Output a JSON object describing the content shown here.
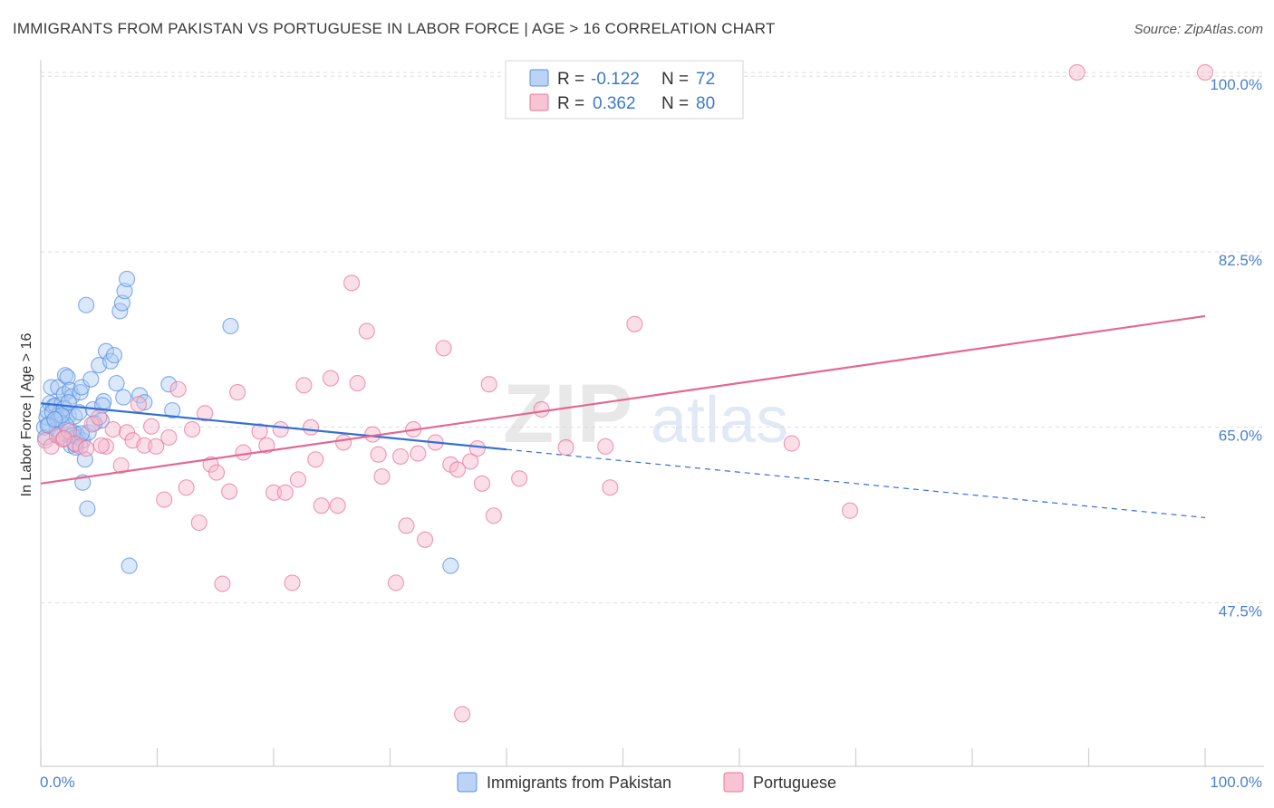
{
  "header": {
    "title": "IMMIGRANTS FROM PAKISTAN VS PORTUGUESE IN LABOR FORCE | AGE > 16 CORRELATION CHART",
    "source": "Source: ZipAtlas.com"
  },
  "watermark": {
    "zip": "ZIP",
    "atlas": "atlas"
  },
  "legend": {
    "rows": [
      {
        "r_label": "R =",
        "r_value": "-0.122",
        "n_label": "N =",
        "n_value": "72",
        "color": "#aecbf5"
      },
      {
        "r_label": "R =",
        "r_value": "0.362",
        "n_label": "N =",
        "n_value": "80",
        "color": "#f7b8cb"
      }
    ]
  },
  "bottom_legend": {
    "items": [
      {
        "label": "Immigrants from Pakistan",
        "color": "#aecbf5"
      },
      {
        "label": "Portuguese",
        "color": "#f7b8cb"
      }
    ]
  },
  "chart_data": {
    "type": "scatter",
    "title": "IMMIGRANTS FROM PAKISTAN VS PORTUGUESE IN LABOR FORCE | AGE > 16 CORRELATION CHART",
    "xlabel": "",
    "ylabel": "In Labor Force | Age > 16",
    "xlim": [
      0,
      100
    ],
    "ylim": [
      32,
      103
    ],
    "y_ticks": [
      47.5,
      65.0,
      82.5,
      100.0
    ],
    "y_tick_labels": [
      "47.5%",
      "65.0%",
      "82.5%",
      "100.0%"
    ],
    "x_tick_labels": [
      "0.0%",
      "100.0%"
    ],
    "grid": true,
    "series": [
      {
        "name": "Immigrants from Pakistan",
        "color": "#5a8fe0",
        "fill": "#aecbf5",
        "trend": {
          "x0": 0,
          "y0": 68.2,
          "x1": 40,
          "y1": 63.6,
          "dash_to_x": 100,
          "dash_to_y": 56.8
        },
        "points": [
          [
            0.3,
            65.8
          ],
          [
            0.5,
            66.8
          ],
          [
            0.6,
            67.4
          ],
          [
            0.8,
            68.2
          ],
          [
            0.9,
            69.8
          ],
          [
            1.1,
            67.9
          ],
          [
            1.2,
            66.4
          ],
          [
            1.3,
            68.0
          ],
          [
            1.4,
            65.6
          ],
          [
            1.5,
            69.8
          ],
          [
            1.6,
            67.2
          ],
          [
            1.7,
            64.9
          ],
          [
            1.8,
            68.1
          ],
          [
            1.9,
            66.8
          ],
          [
            2.0,
            69.1
          ],
          [
            2.1,
            71.0
          ],
          [
            2.2,
            65.1
          ],
          [
            2.3,
            70.8
          ],
          [
            2.4,
            67.0
          ],
          [
            2.5,
            69.5
          ],
          [
            2.6,
            64.0
          ],
          [
            2.7,
            68.9
          ],
          [
            2.8,
            65.3
          ],
          [
            2.9,
            66.9
          ],
          [
            3.0,
            63.8
          ],
          [
            3.1,
            65.1
          ],
          [
            3.2,
            64.8
          ],
          [
            3.3,
            67.3
          ],
          [
            3.4,
            69.3
          ],
          [
            3.5,
            69.8
          ],
          [
            3.6,
            64.5
          ],
          [
            3.8,
            62.6
          ],
          [
            3.9,
            78.0
          ],
          [
            4.1,
            65.3
          ],
          [
            4.3,
            70.6
          ],
          [
            4.5,
            67.6
          ],
          [
            5.0,
            72.0
          ],
          [
            5.2,
            66.5
          ],
          [
            5.4,
            68.4
          ],
          [
            5.6,
            73.4
          ],
          [
            6.0,
            72.4
          ],
          [
            6.3,
            73.0
          ],
          [
            6.5,
            70.2
          ],
          [
            6.8,
            77.4
          ],
          [
            7.0,
            78.2
          ],
          [
            7.2,
            79.4
          ],
          [
            7.4,
            80.6
          ],
          [
            7.1,
            68.8
          ],
          [
            8.5,
            69.0
          ],
          [
            8.9,
            68.3
          ],
          [
            11.0,
            70.1
          ],
          [
            11.3,
            67.5
          ],
          [
            0.4,
            64.8
          ],
          [
            0.7,
            66.1
          ],
          [
            1.0,
            67.3
          ],
          [
            1.5,
            66.6
          ],
          [
            2.2,
            66.0
          ],
          [
            2.7,
            65.0
          ],
          [
            3.0,
            64.1
          ],
          [
            3.5,
            65.2
          ],
          [
            4.0,
            57.7
          ],
          [
            3.6,
            60.3
          ],
          [
            7.6,
            52.0
          ],
          [
            16.3,
            75.9
          ],
          [
            35.2,
            52.0
          ],
          [
            2.0,
            67.7
          ],
          [
            1.8,
            67.0
          ],
          [
            0.6,
            66.0
          ],
          [
            2.4,
            68.3
          ],
          [
            1.2,
            66.6
          ],
          [
            4.6,
            66.2
          ],
          [
            5.3,
            68.0
          ]
        ]
      },
      {
        "name": "Portuguese",
        "color": "#e6779c",
        "fill": "#f7b8cb",
        "trend": {
          "x0": 0,
          "y0": 60.2,
          "x1": 100,
          "y1": 76.9
        },
        "points": [
          [
            0.4,
            64.5
          ],
          [
            0.9,
            63.9
          ],
          [
            1.4,
            65.0
          ],
          [
            1.9,
            64.6
          ],
          [
            2.4,
            65.4
          ],
          [
            2.9,
            64.2
          ],
          [
            3.4,
            63.9
          ],
          [
            3.9,
            63.7
          ],
          [
            4.4,
            66.1
          ],
          [
            5.0,
            66.8
          ],
          [
            5.6,
            63.9
          ],
          [
            6.2,
            65.6
          ],
          [
            6.9,
            62.0
          ],
          [
            7.4,
            65.3
          ],
          [
            7.9,
            64.5
          ],
          [
            8.4,
            68.1
          ],
          [
            8.9,
            64.0
          ],
          [
            9.5,
            65.9
          ],
          [
            9.9,
            63.9
          ],
          [
            10.6,
            58.6
          ],
          [
            11.0,
            64.8
          ],
          [
            11.8,
            69.6
          ],
          [
            12.5,
            59.8
          ],
          [
            13.0,
            65.6
          ],
          [
            13.6,
            56.3
          ],
          [
            14.1,
            67.2
          ],
          [
            14.6,
            62.1
          ],
          [
            15.1,
            61.3
          ],
          [
            15.6,
            50.2
          ],
          [
            16.2,
            59.4
          ],
          [
            16.9,
            69.3
          ],
          [
            17.4,
            63.3
          ],
          [
            18.8,
            65.4
          ],
          [
            19.4,
            64.0
          ],
          [
            20.0,
            59.3
          ],
          [
            20.6,
            65.6
          ],
          [
            21.0,
            59.3
          ],
          [
            21.6,
            50.3
          ],
          [
            22.1,
            60.6
          ],
          [
            22.6,
            70.0
          ],
          [
            23.2,
            65.8
          ],
          [
            23.6,
            62.6
          ],
          [
            24.1,
            58.0
          ],
          [
            24.9,
            70.7
          ],
          [
            25.5,
            58.0
          ],
          [
            26.0,
            64.3
          ],
          [
            26.7,
            80.2
          ],
          [
            27.2,
            70.2
          ],
          [
            28.0,
            75.4
          ],
          [
            28.5,
            65.1
          ],
          [
            29.0,
            63.1
          ],
          [
            29.3,
            60.9
          ],
          [
            30.5,
            50.3
          ],
          [
            30.9,
            62.9
          ],
          [
            31.4,
            56.0
          ],
          [
            32.0,
            65.6
          ],
          [
            32.4,
            63.2
          ],
          [
            33.0,
            54.6
          ],
          [
            33.9,
            64.3
          ],
          [
            34.6,
            73.7
          ],
          [
            35.2,
            62.1
          ],
          [
            35.8,
            61.6
          ],
          [
            36.2,
            37.2
          ],
          [
            36.9,
            62.4
          ],
          [
            37.5,
            63.7
          ],
          [
            37.9,
            60.2
          ],
          [
            38.5,
            70.1
          ],
          [
            38.9,
            57.0
          ],
          [
            41.1,
            60.7
          ],
          [
            43.0,
            67.6
          ],
          [
            45.1,
            63.8
          ],
          [
            48.5,
            63.9
          ],
          [
            48.9,
            59.8
          ],
          [
            51.0,
            76.1
          ],
          [
            64.5,
            64.2
          ],
          [
            69.5,
            57.5
          ],
          [
            89.0,
            101.2
          ],
          [
            100.0,
            101.2
          ],
          [
            5.2,
            64.0
          ],
          [
            2.0,
            64.7
          ]
        ]
      }
    ]
  }
}
